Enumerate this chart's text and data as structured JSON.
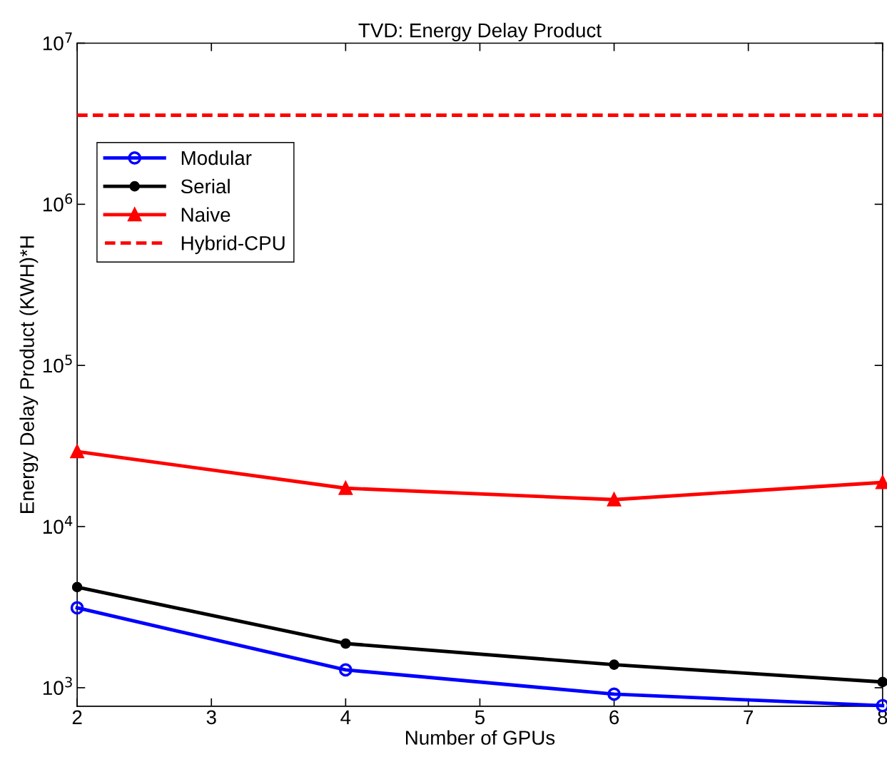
{
  "chart_data": {
    "type": "line",
    "title": "TVD: Energy Delay Product",
    "xlabel": "Number of GPUs",
    "ylabel": "Energy Delay Product (KWH)*H",
    "x": [
      2,
      4,
      6,
      8
    ],
    "series": [
      {
        "name": "Modular",
        "color": "#0000ff",
        "marker": "circle",
        "line_style": "solid",
        "values": [
          3130,
          1290,
          912,
          774
        ]
      },
      {
        "name": "Serial",
        "color": "#000000",
        "marker": "circle",
        "line_style": "solid",
        "values": [
          4210,
          1880,
          1390,
          1085
        ]
      },
      {
        "name": "Naive",
        "color": "#ff0000",
        "marker": "triangle",
        "line_style": "solid",
        "values": [
          29200,
          17300,
          14700,
          18800
        ]
      },
      {
        "name": "Hybrid-CPU",
        "color": "#ff0000",
        "marker": "none",
        "line_style": "dashed",
        "x": [
          2,
          8
        ],
        "values": [
          3570000,
          3570000
        ]
      }
    ],
    "log": "y",
    "xlim": [
      2,
      8
    ],
    "xticks": [
      2,
      3,
      4,
      5,
      6,
      7,
      8
    ],
    "ylim": [
      767,
      10000000
    ],
    "yticks": [
      {
        "value": 1000,
        "label": "10$^{3}$"
      },
      {
        "value": 10000,
        "label": "10$^{4}$"
      },
      {
        "value": 100000,
        "label": "10$^{5}$"
      },
      {
        "value": 1000000,
        "label": "10$^{6}$"
      },
      {
        "value": 10000000,
        "label": "10$^{7}$"
      }
    ],
    "grid": false,
    "legend": "top left"
  }
}
